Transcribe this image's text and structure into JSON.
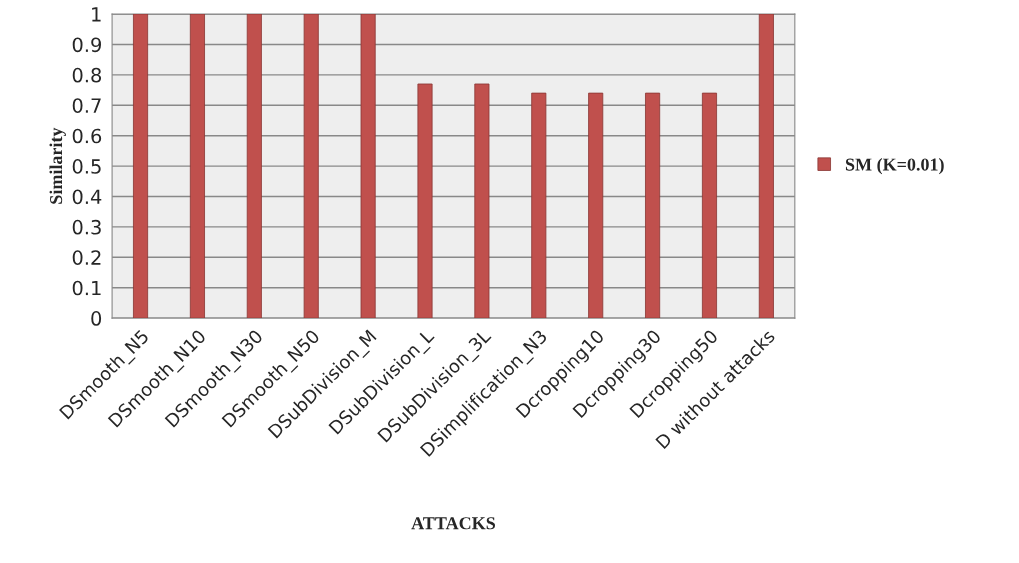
{
  "chart_data": {
    "type": "bar",
    "xlabel": "ATTACKS",
    "ylabel": "Similarity",
    "categories": [
      "DSmooth_N5",
      "DSmooth_N10",
      "DSmooth_N30",
      "DSmooth_N50",
      "DSubDivision_M",
      "DSubDivision_L",
      "DSubDivision_3L",
      "DSimplification_N3",
      "Dcropping10",
      "Dcropping30",
      "Dcropping50",
      "D without attacks"
    ],
    "series": [
      {
        "name": "SM (K=0.01)",
        "color": "#c0504d",
        "values": [
          1,
          1,
          1,
          1,
          1,
          0.77,
          0.77,
          0.74,
          0.74,
          0.74,
          0.74,
          1
        ]
      }
    ],
    "ylim": [
      0,
      1
    ],
    "yticks": [
      0,
      0.1,
      0.2,
      0.3,
      0.4,
      0.5,
      0.6,
      0.7,
      0.8,
      0.9,
      1
    ],
    "grid": "y",
    "legend": "right"
  }
}
